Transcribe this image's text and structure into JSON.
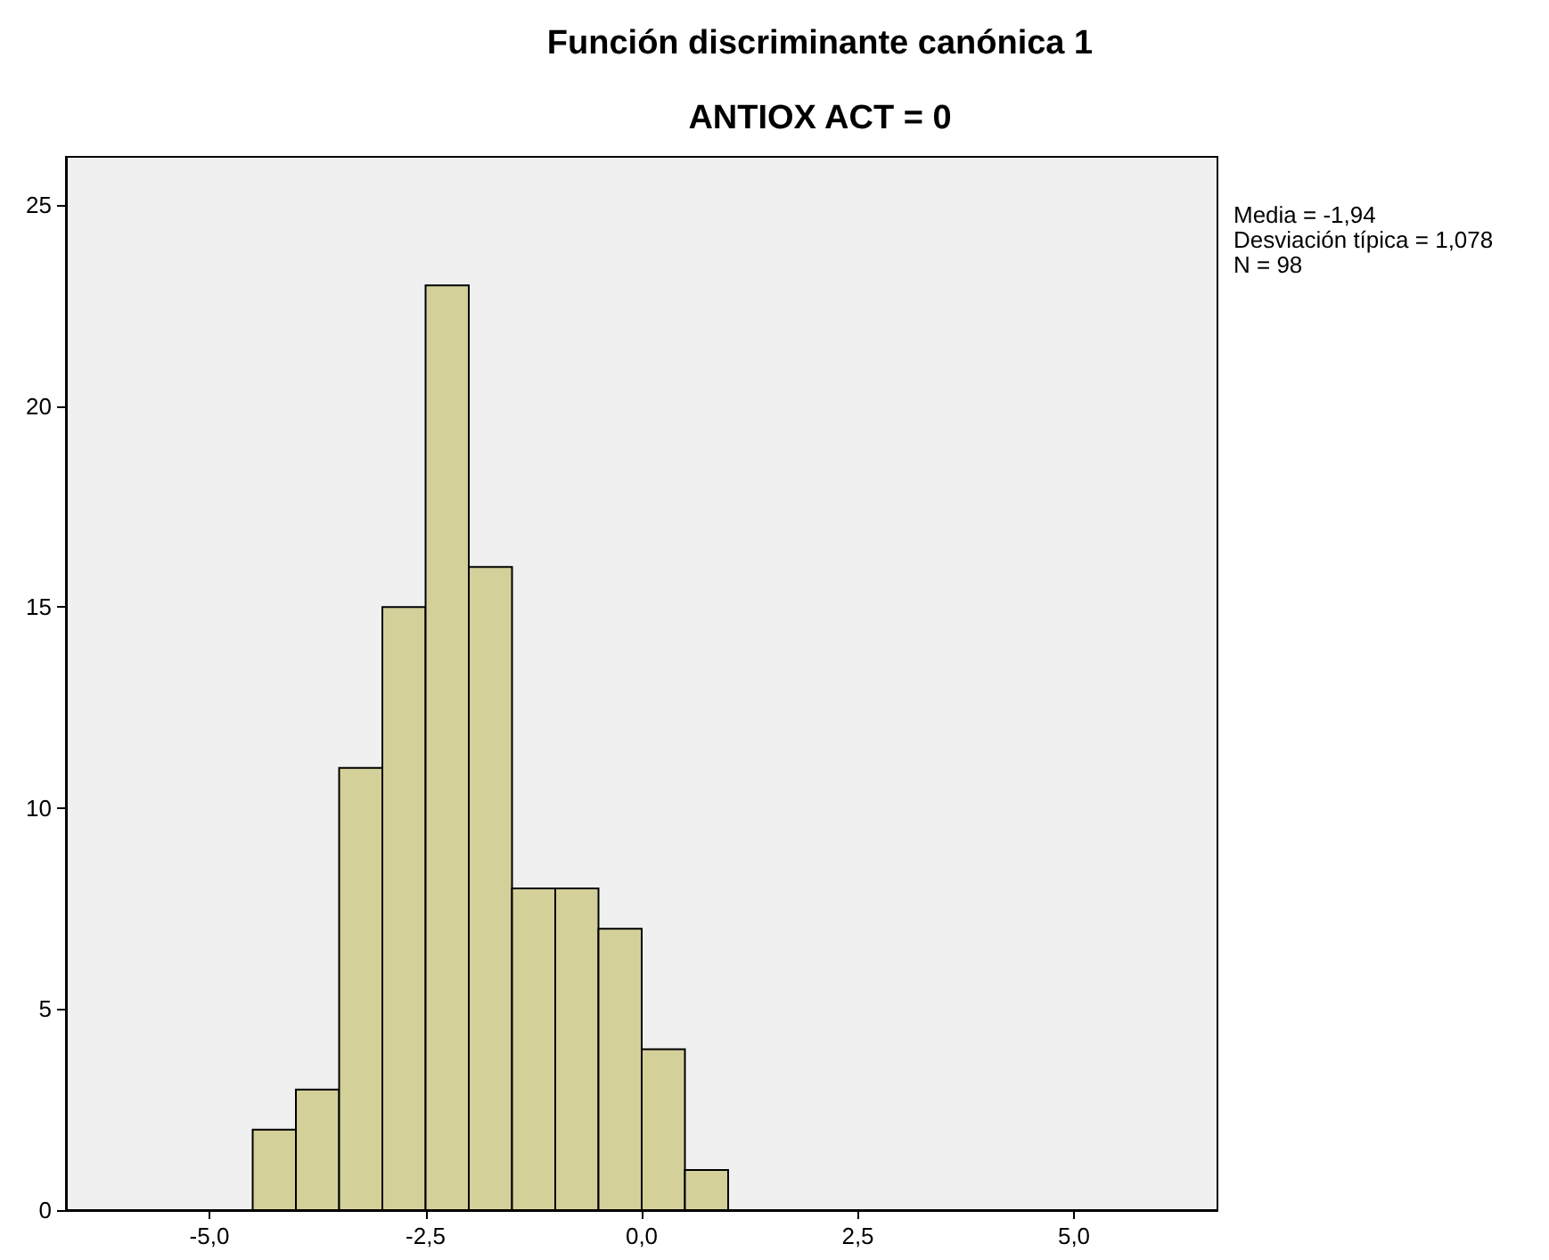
{
  "chart_data": {
    "type": "histogram",
    "title": "Función discriminante canónica 1",
    "subtitle": "ANTIOX ACT = 0",
    "bins": [
      -4.5,
      -4.0,
      -3.5,
      -3.0,
      -2.5,
      -2.0,
      -1.5,
      -1.0,
      -0.5,
      0.0,
      0.5,
      1.0
    ],
    "values": [
      2,
      3,
      11,
      15,
      23,
      16,
      8,
      8,
      7,
      4,
      1
    ],
    "color": "#d4d09a",
    "xlim": [
      -6.66,
      6.66
    ],
    "xticks": [
      {
        "value": -5,
        "label": "-5,0"
      },
      {
        "value": -2.5,
        "label": "-2,5"
      },
      {
        "value": 0,
        "label": "0,0"
      },
      {
        "value": 2.5,
        "label": "2,5"
      },
      {
        "value": 5,
        "label": "5,0"
      }
    ],
    "ylim": [
      0,
      26.2
    ],
    "yticks": [
      0,
      5,
      10,
      15,
      20,
      25
    ],
    "annotations": [
      "Media = -1,94",
      "Desviación típica = 1,078",
      "N = 98"
    ],
    "grid": false
  }
}
